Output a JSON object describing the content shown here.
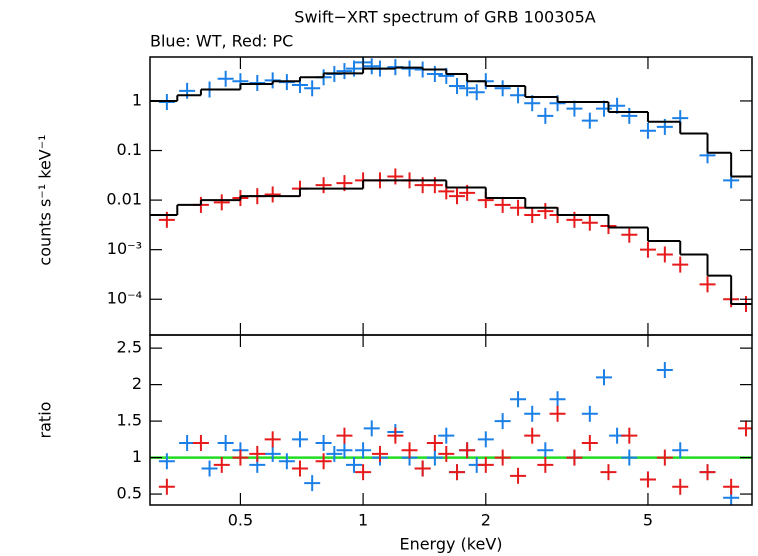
{
  "chart_data": [
    {
      "type": "scatter",
      "title": "Swift−XRT spectrum of GRB 100305A",
      "subtitle": "Blue: WT, Red: PC",
      "y_label": "counts s⁻¹ keV⁻¹",
      "xlog": true,
      "ylog": true,
      "xlim": [
        0.3,
        9
      ],
      "ylim": [
        1.9e-05,
        7.7
      ],
      "xticks": [
        0.5,
        1,
        2,
        5
      ],
      "yticks": [
        1,
        0.1,
        0.01,
        {
          "value": 0.001,
          "label": "10⁻³"
        },
        {
          "value": 0.0001,
          "label": "10⁻⁴"
        }
      ],
      "series": [
        {
          "color": "#1a7fe6",
          "style": "cross",
          "x": [
            0.33,
            0.37,
            0.42,
            0.46,
            0.5,
            0.55,
            0.6,
            0.65,
            0.7,
            0.75,
            0.8,
            0.85,
            0.9,
            0.95,
            1.0,
            1.05,
            1.1,
            1.2,
            1.3,
            1.4,
            1.5,
            1.6,
            1.7,
            1.8,
            1.9,
            2.0,
            2.2,
            2.4,
            2.6,
            2.8,
            3.0,
            3.3,
            3.6,
            3.9,
            4.2,
            4.5,
            5.0,
            5.5,
            6.0,
            7.0,
            8.0
          ],
          "values": [
            0.95,
            1.6,
            1.7,
            2.8,
            2.5,
            2.3,
            2.6,
            2.4,
            2.1,
            1.8,
            3.0,
            3.5,
            4.0,
            4.5,
            6.0,
            5.0,
            4.5,
            4.8,
            4.5,
            4.3,
            3.5,
            3.2,
            2.0,
            1.8,
            1.5,
            2.5,
            1.8,
            1.3,
            0.9,
            0.5,
            0.9,
            0.7,
            0.4,
            0.7,
            0.8,
            0.5,
            0.25,
            0.3,
            0.45,
            0.08,
            0.025
          ]
        },
        {
          "color": "#e61a1a",
          "style": "cross",
          "x": [
            0.33,
            0.4,
            0.45,
            0.5,
            0.55,
            0.6,
            0.7,
            0.8,
            0.9,
            1.0,
            1.1,
            1.2,
            1.3,
            1.4,
            1.5,
            1.6,
            1.7,
            1.8,
            2.0,
            2.2,
            2.4,
            2.6,
            2.8,
            3.0,
            3.3,
            3.6,
            4.0,
            4.5,
            5.0,
            5.5,
            6.0,
            7.0,
            8.0,
            8.7
          ],
          "values": [
            0.004,
            0.008,
            0.009,
            0.011,
            0.012,
            0.013,
            0.017,
            0.02,
            0.022,
            0.025,
            0.025,
            0.03,
            0.025,
            0.02,
            0.02,
            0.015,
            0.012,
            0.014,
            0.01,
            0.008,
            0.007,
            0.005,
            0.006,
            0.005,
            0.004,
            0.0035,
            0.003,
            0.002,
            0.001,
            0.0008,
            0.0005,
            0.0002,
            0.0001,
            8e-05
          ]
        },
        {
          "color": "#000000",
          "style": "step",
          "x": [
            0.3,
            0.35,
            0.4,
            0.5,
            0.6,
            0.7,
            0.8,
            1.0,
            1.2,
            1.4,
            1.6,
            1.8,
            2.0,
            2.5,
            3.0,
            4.0,
            5.0,
            6.0,
            7.0,
            8.0
          ],
          "values": [
            1.0,
            1.3,
            1.7,
            2.2,
            2.5,
            3.0,
            3.6,
            4.5,
            4.7,
            4.3,
            3.5,
            2.5,
            2.0,
            1.2,
            0.95,
            0.6,
            0.38,
            0.22,
            0.09,
            0.03
          ]
        },
        {
          "color": "#000000",
          "style": "step",
          "x": [
            0.3,
            0.35,
            0.4,
            0.5,
            0.7,
            1.0,
            1.3,
            1.6,
            2.0,
            2.5,
            3.0,
            4.0,
            5.0,
            6.0,
            7.0,
            8.0
          ],
          "values": [
            0.005,
            0.008,
            0.01,
            0.012,
            0.017,
            0.025,
            0.025,
            0.018,
            0.011,
            0.007,
            0.005,
            0.0028,
            0.0015,
            0.0008,
            0.0003,
            8e-05
          ]
        }
      ]
    },
    {
      "type": "scatter",
      "x_label": "Energy (keV)",
      "y_label": "ratio",
      "xlog": true,
      "ylog": false,
      "xlim": [
        0.3,
        9
      ],
      "ylim": [
        0.35,
        2.68
      ],
      "xticks": [
        0.5,
        1,
        2,
        5
      ],
      "yticks": [
        0.5,
        1,
        1.5,
        2,
        2.5
      ],
      "reference_line": {
        "value": 1,
        "color": "#22dd22"
      },
      "series": [
        {
          "color": "#1a7fe6",
          "style": "cross",
          "x": [
            0.33,
            0.37,
            0.42,
            0.46,
            0.5,
            0.55,
            0.6,
            0.65,
            0.7,
            0.75,
            0.8,
            0.85,
            0.9,
            0.95,
            1.0,
            1.05,
            1.1,
            1.2,
            1.3,
            1.4,
            1.5,
            1.6,
            1.7,
            1.8,
            1.9,
            2.0,
            2.2,
            2.4,
            2.6,
            2.8,
            3.0,
            3.3,
            3.6,
            3.9,
            4.2,
            4.5,
            5.0,
            5.5,
            6.0,
            7.0,
            8.0
          ],
          "values": [
            0.95,
            1.2,
            0.85,
            1.2,
            1.1,
            0.9,
            1.05,
            0.95,
            1.25,
            0.65,
            1.2,
            1.05,
            1.1,
            0.9,
            1.1,
            1.4,
            1.0,
            1.35,
            1.0,
            0.85,
            1.0,
            1.3,
            0.8,
            1.1,
            0.9,
            1.25,
            1.5,
            1.8,
            1.6,
            1.1,
            1.8,
            1.0,
            1.6,
            2.1,
            1.3,
            1.0,
            0.7,
            2.2,
            1.1,
            0.8,
            0.45
          ]
        },
        {
          "color": "#e61a1a",
          "style": "cross",
          "x": [
            0.33,
            0.4,
            0.45,
            0.5,
            0.55,
            0.6,
            0.7,
            0.8,
            0.9,
            1.0,
            1.1,
            1.2,
            1.3,
            1.4,
            1.5,
            1.6,
            1.7,
            1.8,
            2.0,
            2.2,
            2.4,
            2.6,
            2.8,
            3.0,
            3.3,
            3.6,
            4.0,
            4.5,
            5.0,
            5.5,
            6.0,
            7.0,
            8.0,
            8.7
          ],
          "values": [
            0.6,
            1.2,
            0.9,
            1.0,
            1.05,
            1.25,
            0.85,
            0.95,
            1.3,
            0.8,
            1.05,
            1.3,
            1.1,
            0.85,
            1.2,
            1.05,
            0.8,
            1.1,
            0.9,
            1.0,
            0.75,
            1.3,
            0.9,
            1.6,
            1.0,
            1.2,
            0.8,
            1.3,
            0.7,
            1.0,
            0.6,
            0.8,
            0.6,
            1.4
          ]
        }
      ]
    }
  ]
}
